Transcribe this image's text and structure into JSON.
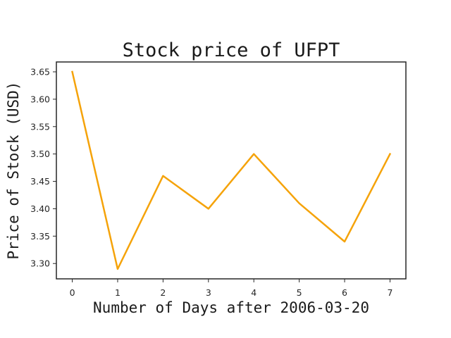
{
  "chart_data": {
    "type": "line",
    "title": "Stock price of UFPT",
    "xlabel": "Number of Days after 2006-03-20",
    "ylabel": "Price of Stock (USD)",
    "x": [
      0,
      1,
      2,
      3,
      4,
      5,
      6,
      7
    ],
    "series": [
      {
        "values": [
          3.65,
          3.29,
          3.46,
          3.4,
          3.5,
          3.41,
          3.34,
          3.5
        ],
        "color": "#f5a30a"
      }
    ],
    "xlim": [
      -0.35,
      7.35
    ],
    "ylim": [
      3.272,
      3.668
    ],
    "xticks": [
      "0",
      "1",
      "2",
      "3",
      "4",
      "5",
      "6",
      "7"
    ],
    "yticks": [
      "3.30",
      "3.35",
      "3.40",
      "3.45",
      "3.50",
      "3.55",
      "3.60",
      "3.65"
    ],
    "grid": false,
    "legend": "none"
  }
}
